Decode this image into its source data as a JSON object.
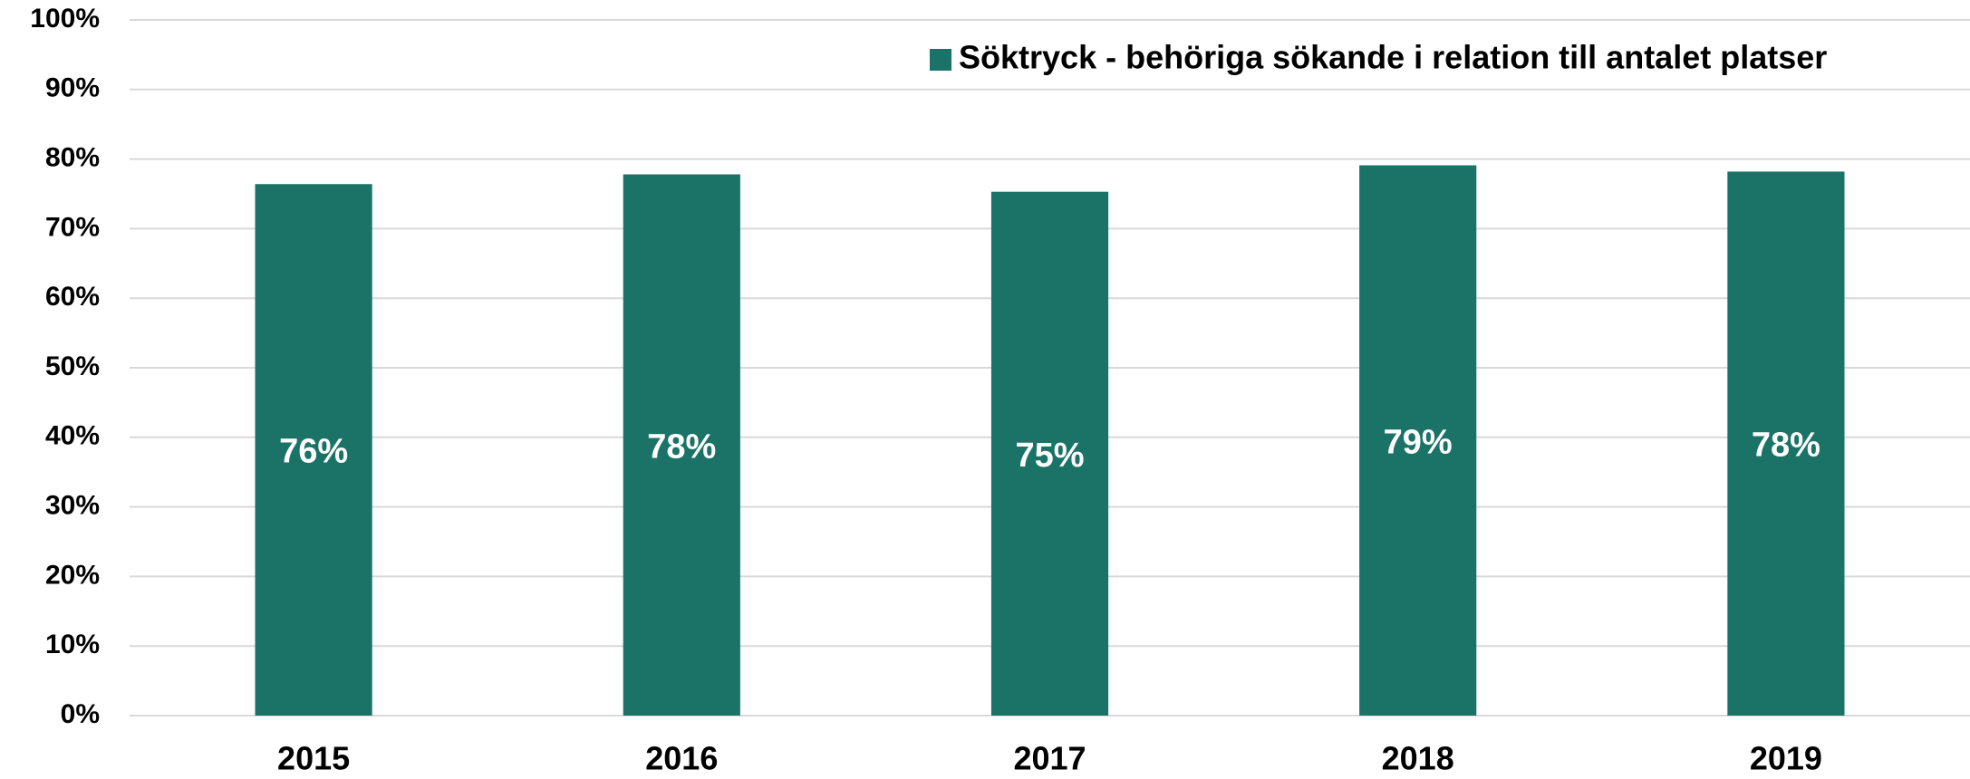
{
  "chart_data": {
    "type": "bar",
    "categories": [
      "2015",
      "2016",
      "2017",
      "2018",
      "2019"
    ],
    "series": [
      {
        "name": "Söktryck - behöriga sökande i relation till antalet platser",
        "color": "#1b7367",
        "values": [
          76.4,
          77.8,
          75.3,
          79.1,
          78.2
        ],
        "value_labels": [
          "76%",
          "78%",
          "75%",
          "79%",
          "78%"
        ]
      }
    ],
    "ylim": [
      0,
      100
    ],
    "yticks": [
      {
        "value": 0,
        "label": "0%"
      },
      {
        "value": 10,
        "label": "10%"
      },
      {
        "value": 20,
        "label": "20%"
      },
      {
        "value": 30,
        "label": "30%"
      },
      {
        "value": 40,
        "label": "40%"
      },
      {
        "value": 50,
        "label": "50%"
      },
      {
        "value": 60,
        "label": "60%"
      },
      {
        "value": 70,
        "label": "70%"
      },
      {
        "value": 80,
        "label": "80%"
      },
      {
        "value": 90,
        "label": "90%"
      },
      {
        "value": 100,
        "label": "100%"
      }
    ],
    "grid": true,
    "legend": "top-right"
  }
}
